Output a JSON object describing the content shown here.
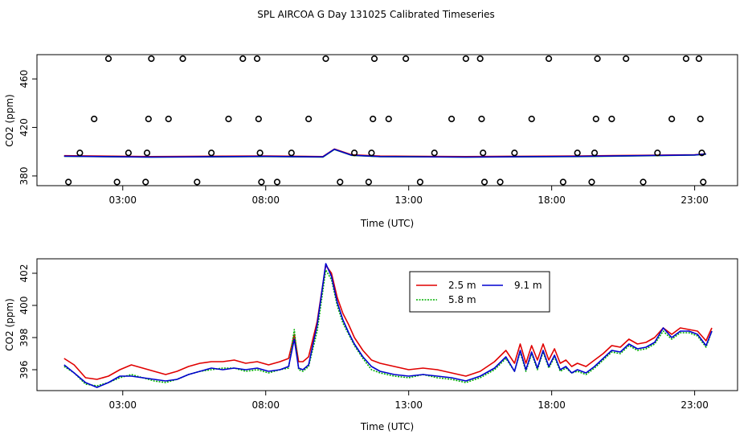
{
  "title": "SPL AIRCOA G  Day 131025  Calibrated Timeseries",
  "colors": {
    "red": "#e00000",
    "green": "#00b000",
    "blue": "#0000d0",
    "black": "#000000"
  },
  "chart_data": [
    {
      "type": "scatter",
      "xlabel": "Time (UTC)",
      "ylabel": "CO2 (ppm)",
      "xlim": [
        0,
        24.5
      ],
      "ylim": [
        372,
        480
      ],
      "x_ticks": [
        {
          "value": 3,
          "label": "03:00"
        },
        {
          "value": 8,
          "label": "08:00"
        },
        {
          "value": 13,
          "label": "13:00"
        },
        {
          "value": 18,
          "label": "18:00"
        },
        {
          "value": 23,
          "label": "23:00"
        }
      ],
      "y_ticks": [
        {
          "value": 380,
          "label": "380"
        },
        {
          "value": 420,
          "label": "420"
        },
        {
          "value": 460,
          "label": "460"
        }
      ],
      "points": [
        {
          "x": 1.1,
          "y": 375
        },
        {
          "x": 1.5,
          "y": 399
        },
        {
          "x": 2.0,
          "y": 427
        },
        {
          "x": 2.5,
          "y": 483
        },
        {
          "x": 2.8,
          "y": 375
        },
        {
          "x": 3.2,
          "y": 399
        },
        {
          "x": 3.8,
          "y": 375
        },
        {
          "x": 3.85,
          "y": 399
        },
        {
          "x": 3.9,
          "y": 427
        },
        {
          "x": 4.0,
          "y": 483
        },
        {
          "x": 4.6,
          "y": 427
        },
        {
          "x": 5.1,
          "y": 483
        },
        {
          "x": 5.6,
          "y": 375
        },
        {
          "x": 6.1,
          "y": 399
        },
        {
          "x": 6.7,
          "y": 427
        },
        {
          "x": 7.2,
          "y": 483
        },
        {
          "x": 7.7,
          "y": 483
        },
        {
          "x": 7.75,
          "y": 427
        },
        {
          "x": 7.8,
          "y": 399
        },
        {
          "x": 7.85,
          "y": 375
        },
        {
          "x": 8.4,
          "y": 375
        },
        {
          "x": 8.9,
          "y": 399
        },
        {
          "x": 9.5,
          "y": 427
        },
        {
          "x": 10.1,
          "y": 483
        },
        {
          "x": 10.6,
          "y": 375
        },
        {
          "x": 11.1,
          "y": 399
        },
        {
          "x": 11.6,
          "y": 375
        },
        {
          "x": 11.7,
          "y": 399
        },
        {
          "x": 11.75,
          "y": 427
        },
        {
          "x": 11.8,
          "y": 483
        },
        {
          "x": 12.3,
          "y": 427
        },
        {
          "x": 12.9,
          "y": 483
        },
        {
          "x": 13.4,
          "y": 375
        },
        {
          "x": 13.9,
          "y": 399
        },
        {
          "x": 14.5,
          "y": 427
        },
        {
          "x": 15.0,
          "y": 483
        },
        {
          "x": 15.5,
          "y": 483
        },
        {
          "x": 15.55,
          "y": 427
        },
        {
          "x": 15.6,
          "y": 399
        },
        {
          "x": 15.65,
          "y": 375
        },
        {
          "x": 16.2,
          "y": 375
        },
        {
          "x": 16.7,
          "y": 399
        },
        {
          "x": 17.3,
          "y": 427
        },
        {
          "x": 17.9,
          "y": 483
        },
        {
          "x": 18.4,
          "y": 375
        },
        {
          "x": 18.9,
          "y": 399
        },
        {
          "x": 19.4,
          "y": 375
        },
        {
          "x": 19.5,
          "y": 399
        },
        {
          "x": 19.55,
          "y": 427
        },
        {
          "x": 19.6,
          "y": 483
        },
        {
          "x": 20.1,
          "y": 427
        },
        {
          "x": 20.6,
          "y": 483
        },
        {
          "x": 21.2,
          "y": 375
        },
        {
          "x": 21.7,
          "y": 399
        },
        {
          "x": 22.2,
          "y": 427
        },
        {
          "x": 22.7,
          "y": 483
        },
        {
          "x": 23.15,
          "y": 483
        },
        {
          "x": 23.2,
          "y": 427
        },
        {
          "x": 23.25,
          "y": 399
        },
        {
          "x": 23.3,
          "y": 375
        }
      ],
      "series": [
        {
          "color": "#e00000",
          "x": [
            0.95,
            4.0,
            8.0,
            10.0,
            10.4,
            11.0,
            12.0,
            15.0,
            19.0,
            21.0,
            23.0,
            23.4
          ],
          "y": [
            396.7,
            396.0,
            396.5,
            396.0,
            402.2,
            397.5,
            396.4,
            396.0,
            396.5,
            397.0,
            397.5,
            398.2
          ]
        },
        {
          "color": "#00b000",
          "x": [
            0.95,
            4.0,
            8.0,
            10.0,
            10.4,
            11.0,
            12.0,
            15.0,
            19.0,
            21.0,
            23.0,
            23.4
          ],
          "y": [
            396.2,
            395.5,
            396.0,
            395.6,
            401.8,
            397.0,
            395.9,
            395.5,
            396.0,
            396.6,
            397.2,
            398.0
          ]
        },
        {
          "color": "#0000d0",
          "x": [
            0.95,
            4.0,
            8.0,
            10.0,
            10.4,
            11.0,
            12.0,
            15.0,
            19.0,
            21.0,
            23.0,
            23.4
          ],
          "y": [
            396.3,
            395.6,
            396.1,
            395.7,
            402.0,
            397.1,
            396.0,
            395.6,
            396.1,
            396.7,
            397.3,
            398.1
          ]
        }
      ]
    },
    {
      "type": "line",
      "xlabel": "Time (UTC)",
      "ylabel": "CO2 (ppm)",
      "xlim": [
        0,
        24.5
      ],
      "ylim": [
        394.7,
        402.9
      ],
      "x_ticks": [
        {
          "value": 3,
          "label": "03:00"
        },
        {
          "value": 8,
          "label": "08:00"
        },
        {
          "value": 13,
          "label": "13:00"
        },
        {
          "value": 18,
          "label": "18:00"
        },
        {
          "value": 23,
          "label": "23:00"
        }
      ],
      "y_ticks": [
        {
          "value": 396,
          "label": "396"
        },
        {
          "value": 398,
          "label": "398"
        },
        {
          "value": 400,
          "label": "400"
        },
        {
          "value": 402,
          "label": "402"
        }
      ],
      "legend_position": "top-center",
      "series": [
        {
          "name": "2.5 m",
          "color": "#e00000",
          "x": [
            0.95,
            1.3,
            1.7,
            2.1,
            2.5,
            2.9,
            3.3,
            3.7,
            4.1,
            4.5,
            4.9,
            5.3,
            5.7,
            6.1,
            6.5,
            6.9,
            7.3,
            7.7,
            8.1,
            8.5,
            8.8,
            9.0,
            9.15,
            9.3,
            9.5,
            9.8,
            10.1,
            10.3,
            10.5,
            10.7,
            10.9,
            11.1,
            11.4,
            11.7,
            12.0,
            12.5,
            13.0,
            13.5,
            14.0,
            14.5,
            15.0,
            15.5,
            16.0,
            16.4,
            16.7,
            16.9,
            17.1,
            17.3,
            17.5,
            17.7,
            17.9,
            18.1,
            18.3,
            18.5,
            18.7,
            18.9,
            19.2,
            19.5,
            19.8,
            20.1,
            20.4,
            20.7,
            21.0,
            21.3,
            21.6,
            21.9,
            22.2,
            22.5,
            22.8,
            23.1,
            23.4,
            23.6
          ],
          "y": [
            396.7,
            396.3,
            395.5,
            395.4,
            395.6,
            396.0,
            396.3,
            396.1,
            395.9,
            395.7,
            395.9,
            396.2,
            396.4,
            396.5,
            396.5,
            396.6,
            396.4,
            396.5,
            396.3,
            396.5,
            396.7,
            398.2,
            396.5,
            396.5,
            396.8,
            399.0,
            402.5,
            402.0,
            400.5,
            399.5,
            398.8,
            398.0,
            397.2,
            396.6,
            396.4,
            396.2,
            396.0,
            396.1,
            396.0,
            395.8,
            395.6,
            395.9,
            396.5,
            397.2,
            396.4,
            397.6,
            396.4,
            397.5,
            396.6,
            397.6,
            396.6,
            397.3,
            396.4,
            396.6,
            396.2,
            396.4,
            396.2,
            396.6,
            397.0,
            397.5,
            397.4,
            397.9,
            397.6,
            397.7,
            398.0,
            398.6,
            398.2,
            398.6,
            398.5,
            398.4,
            397.8,
            398.6
          ]
        },
        {
          "name": "5.8 m",
          "color": "#00b000",
          "x": [
            0.95,
            1.3,
            1.7,
            2.1,
            2.5,
            2.9,
            3.3,
            3.7,
            4.1,
            4.5,
            4.9,
            5.3,
            5.7,
            6.1,
            6.5,
            6.9,
            7.3,
            7.7,
            8.1,
            8.5,
            8.8,
            9.0,
            9.15,
            9.3,
            9.5,
            9.8,
            10.1,
            10.3,
            10.5,
            10.7,
            10.9,
            11.1,
            11.4,
            11.7,
            12.0,
            12.5,
            13.0,
            13.5,
            14.0,
            14.5,
            15.0,
            15.5,
            16.0,
            16.4,
            16.7,
            16.9,
            17.1,
            17.3,
            17.5,
            17.7,
            17.9,
            18.1,
            18.3,
            18.5,
            18.7,
            18.9,
            19.2,
            19.5,
            19.8,
            20.1,
            20.4,
            20.7,
            21.0,
            21.3,
            21.6,
            21.9,
            22.2,
            22.5,
            22.8,
            23.1,
            23.4,
            23.6
          ],
          "y": [
            396.2,
            395.8,
            395.1,
            395.0,
            395.2,
            395.5,
            395.7,
            395.5,
            395.3,
            395.2,
            395.4,
            395.7,
            395.9,
            396.0,
            396.1,
            396.1,
            395.9,
            396.0,
            395.8,
            396.0,
            396.1,
            398.5,
            396.0,
            395.9,
            396.2,
            398.4,
            402.2,
            401.6,
            400.0,
            398.9,
            398.2,
            397.5,
            396.7,
            396.0,
            395.8,
            395.6,
            395.5,
            395.7,
            395.5,
            395.4,
            395.2,
            395.5,
            396.0,
            396.7,
            395.9,
            397.1,
            395.9,
            397.0,
            396.0,
            397.1,
            396.1,
            396.8,
            395.9,
            396.1,
            395.8,
            395.9,
            395.7,
            396.1,
            396.6,
            397.1,
            397.0,
            397.5,
            397.2,
            397.3,
            397.6,
            398.4,
            397.9,
            398.3,
            398.3,
            398.1,
            397.4,
            398.4
          ]
        },
        {
          "name": "9.1 m",
          "color": "#0000d0",
          "x": [
            0.95,
            1.3,
            1.7,
            2.1,
            2.5,
            2.9,
            3.3,
            3.7,
            4.1,
            4.5,
            4.9,
            5.3,
            5.7,
            6.1,
            6.5,
            6.9,
            7.3,
            7.7,
            8.1,
            8.5,
            8.8,
            9.0,
            9.15,
            9.3,
            9.5,
            9.8,
            10.1,
            10.3,
            10.5,
            10.7,
            10.9,
            11.1,
            11.4,
            11.7,
            12.0,
            12.5,
            13.0,
            13.5,
            14.0,
            14.5,
            15.0,
            15.5,
            16.0,
            16.4,
            16.7,
            16.9,
            17.1,
            17.3,
            17.5,
            17.7,
            17.9,
            18.1,
            18.3,
            18.5,
            18.7,
            18.9,
            19.2,
            19.5,
            19.8,
            20.1,
            20.4,
            20.7,
            21.0,
            21.3,
            21.6,
            21.9,
            22.2,
            22.5,
            22.8,
            23.1,
            23.4,
            23.6
          ],
          "y": [
            396.3,
            395.8,
            395.2,
            394.9,
            395.2,
            395.6,
            395.6,
            395.5,
            395.4,
            395.3,
            395.4,
            395.7,
            395.9,
            396.1,
            396.0,
            396.1,
            396.0,
            396.1,
            395.9,
            396.0,
            396.2,
            397.9,
            396.1,
            396.0,
            396.3,
            398.8,
            402.6,
            401.8,
            400.2,
            399.1,
            398.3,
            397.6,
            396.8,
            396.2,
            395.9,
            395.7,
            395.6,
            395.7,
            395.6,
            395.5,
            395.3,
            395.6,
            396.1,
            396.8,
            395.9,
            397.2,
            396.0,
            397.1,
            396.1,
            397.2,
            396.2,
            396.9,
            396.0,
            396.2,
            395.8,
            396.0,
            395.8,
            396.2,
            396.7,
            397.2,
            397.1,
            397.6,
            397.3,
            397.4,
            397.7,
            398.6,
            398.0,
            398.4,
            398.4,
            398.2,
            397.5,
            398.4
          ]
        }
      ]
    }
  ]
}
